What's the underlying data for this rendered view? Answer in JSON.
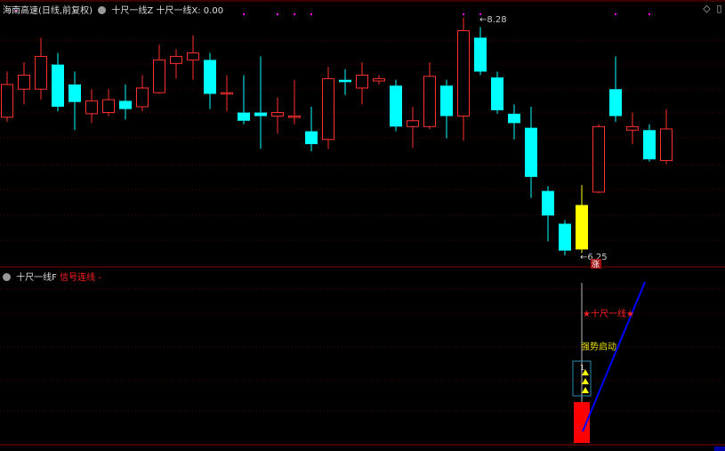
{
  "header": {
    "title": "海南高速(日线,前复权)",
    "ind1": "十尺一线Z",
    "ind2": "十尺一线X: 0.00",
    "icons": [
      "diamond-icon",
      "window-icon"
    ]
  },
  "sub_header": {
    "name": "十尺一线F",
    "signal": "信号连线 -"
  },
  "colors": {
    "up": "#ff3030",
    "down": "#00ffff",
    "highlight": "#ffff00",
    "grid": "#5a0000",
    "line": "#0000ff",
    "marker": "#ff00ff"
  },
  "chart_data": [
    {
      "type": "candlestick",
      "title": "",
      "annotations": {
        "high_label": "8.28",
        "low_label": "6.25",
        "tag": "涨"
      },
      "top_marker_indices": [
        14,
        16,
        17,
        18,
        27,
        28,
        36,
        38
      ],
      "highlight_index": 34,
      "ohlc": [
        [
          7.43,
          7.82,
          7.39,
          7.71
        ],
        [
          7.67,
          7.9,
          7.54,
          7.79
        ],
        [
          7.67,
          8.11,
          7.58,
          7.95
        ],
        [
          7.88,
          7.98,
          7.48,
          7.52
        ],
        [
          7.71,
          7.82,
          7.32,
          7.56
        ],
        [
          7.46,
          7.67,
          7.38,
          7.57
        ],
        [
          7.47,
          7.67,
          7.44,
          7.58
        ],
        [
          7.57,
          7.71,
          7.41,
          7.5
        ],
        [
          7.52,
          7.79,
          7.48,
          7.68
        ],
        [
          7.64,
          8.05,
          7.63,
          7.92
        ],
        [
          7.89,
          8.01,
          7.76,
          7.95
        ],
        [
          7.92,
          8.13,
          7.75,
          7.98
        ],
        [
          7.92,
          7.98,
          7.5,
          7.63
        ],
        [
          7.63,
          7.79,
          7.48,
          7.64
        ],
        [
          7.47,
          7.79,
          7.37,
          7.4
        ],
        [
          7.47,
          7.95,
          7.16,
          7.44
        ],
        [
          7.44,
          7.6,
          7.29,
          7.47
        ],
        [
          7.43,
          7.75,
          7.37,
          7.44
        ],
        [
          7.31,
          7.52,
          7.14,
          7.2
        ],
        [
          7.24,
          7.86,
          7.16,
          7.76
        ],
        [
          7.75,
          7.84,
          7.62,
          7.73
        ],
        [
          7.68,
          7.9,
          7.54,
          7.79
        ],
        [
          7.74,
          7.79,
          7.71,
          7.76
        ],
        [
          7.7,
          7.75,
          7.31,
          7.35
        ],
        [
          7.35,
          7.52,
          7.17,
          7.4
        ],
        [
          7.35,
          7.9,
          7.33,
          7.78
        ],
        [
          7.7,
          7.75,
          7.25,
          7.44
        ],
        [
          7.44,
          8.28,
          7.23,
          8.17
        ],
        [
          8.11,
          8.2,
          7.79,
          7.82
        ],
        [
          7.77,
          7.82,
          7.46,
          7.49
        ],
        [
          7.46,
          7.54,
          7.24,
          7.38
        ],
        [
          7.34,
          7.52,
          6.74,
          6.92
        ],
        [
          6.8,
          6.84,
          6.37,
          6.59
        ],
        [
          6.52,
          6.55,
          6.25,
          6.29
        ],
        [
          6.3,
          6.85,
          6.27,
          6.68
        ],
        [
          6.79,
          7.37,
          6.78,
          7.35
        ],
        [
          7.67,
          7.95,
          7.39,
          7.44
        ],
        [
          7.32,
          7.47,
          7.2,
          7.35
        ],
        [
          7.32,
          7.37,
          7.05,
          7.07
        ],
        [
          7.06,
          7.5,
          7.03,
          7.33
        ]
      ]
    },
    {
      "type": "indicator",
      "signal_index": 34,
      "labels": {
        "star": "★十尺一线★",
        "strong": "强势启动",
        "box_value": "1"
      }
    }
  ]
}
